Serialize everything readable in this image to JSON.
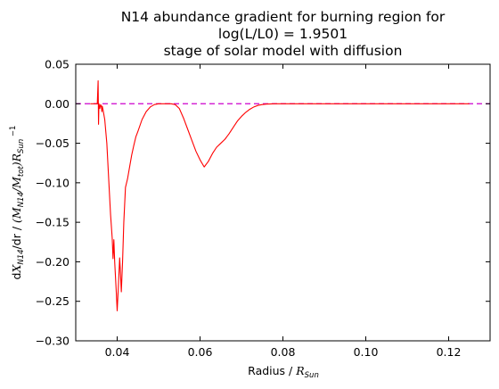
{
  "chart_data": {
    "type": "line",
    "title_lines": [
      "N14 abundance gradient for burning region for",
      "log(L/L0) = 1.9501",
      "stage of solar model with diffusion"
    ],
    "xlabel": "Radius / R_Sun",
    "ylabel": "dX_N14/dr / (M_N14/M_tot)R_Sun^-1",
    "xlim": [
      0.03,
      0.13
    ],
    "ylim": [
      -0.3,
      0.05
    ],
    "xticks": [
      0.04,
      0.06,
      0.08,
      0.1,
      0.12
    ],
    "xtick_labels": [
      "0.04",
      "0.06",
      "0.08",
      "0.10",
      "0.12"
    ],
    "yticks": [
      0.05,
      0.0,
      -0.05,
      -0.1,
      -0.15,
      -0.2,
      -0.25,
      -0.3
    ],
    "ytick_labels": [
      "0.05",
      "0.00",
      "−0.05",
      "−0.10",
      "−0.15",
      "−0.20",
      "−0.25",
      "−0.30"
    ],
    "grid": false,
    "reference_line": {
      "y": 0.0,
      "x": [
        0.03,
        0.13
      ],
      "style": "dashed",
      "color": "#cc00cc"
    },
    "series": [
      {
        "color": "#ff0000",
        "x": [
          0.0335,
          0.034,
          0.0345,
          0.035,
          0.0352,
          0.0354,
          0.0355,
          0.0356,
          0.0357,
          0.0358,
          0.036,
          0.0362,
          0.0363,
          0.0364,
          0.0366,
          0.037,
          0.0375,
          0.038,
          0.0384,
          0.0388,
          0.039,
          0.0392,
          0.0394,
          0.0396,
          0.0398,
          0.04,
          0.0403,
          0.0406,
          0.0408,
          0.041,
          0.0413,
          0.0416,
          0.042,
          0.0425,
          0.043,
          0.0435,
          0.044,
          0.0445,
          0.045,
          0.046,
          0.047,
          0.048,
          0.049,
          0.05,
          0.051,
          0.052,
          0.053,
          0.054,
          0.055,
          0.056,
          0.057,
          0.058,
          0.059,
          0.06,
          0.061,
          0.062,
          0.063,
          0.064,
          0.065,
          0.066,
          0.067,
          0.068,
          0.069,
          0.07,
          0.071,
          0.072,
          0.073,
          0.074,
          0.075,
          0.076,
          0.078,
          0.08,
          0.085,
          0.09,
          0.095,
          0.1,
          0.105,
          0.11,
          0.115,
          0.12,
          0.125
        ],
        "y": [
          0.0,
          0.0,
          0.0,
          0.0,
          0.0,
          0.029,
          -0.026,
          0.0,
          -0.003,
          -0.006,
          -0.001,
          -0.004,
          -0.01,
          -0.003,
          -0.008,
          -0.02,
          -0.05,
          -0.1,
          -0.14,
          -0.17,
          -0.196,
          -0.172,
          -0.2,
          -0.22,
          -0.24,
          -0.262,
          -0.23,
          -0.195,
          -0.215,
          -0.238,
          -0.2,
          -0.15,
          -0.106,
          -0.095,
          -0.08,
          -0.065,
          -0.053,
          -0.042,
          -0.035,
          -0.02,
          -0.01,
          -0.004,
          -0.001,
          0.0,
          0.0,
          0.0,
          0.0,
          -0.001,
          -0.006,
          -0.018,
          -0.032,
          -0.046,
          -0.06,
          -0.071,
          -0.08,
          -0.073,
          -0.063,
          -0.055,
          -0.05,
          -0.045,
          -0.038,
          -0.03,
          -0.022,
          -0.016,
          -0.011,
          -0.007,
          -0.004,
          -0.002,
          -0.001,
          -0.0005,
          0.0,
          0.0,
          0.0,
          0.0,
          0.0,
          0.0,
          0.0,
          0.0,
          0.0,
          0.0,
          0.0
        ]
      }
    ]
  }
}
